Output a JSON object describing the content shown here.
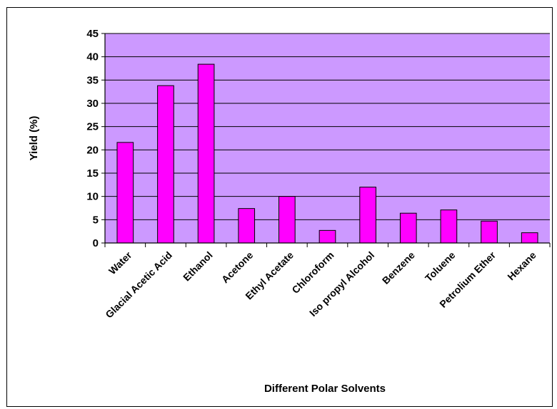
{
  "chart_data": {
    "type": "bar",
    "title": "",
    "xlabel": "Different Polar Solvents",
    "ylabel": "Yield (%)",
    "ylim": [
      0,
      45
    ],
    "yticks": [
      0,
      5,
      10,
      15,
      20,
      25,
      30,
      35,
      40,
      45
    ],
    "grid": true,
    "legend": "none",
    "categories": [
      "Water",
      "Glacial Acetic Acid",
      "Ethanol",
      "Acetone",
      "Ethyl Acetate",
      "Chloroform",
      "Iso propyl Alcohol",
      "Benzene",
      "Toluene",
      "Petrolium Ether",
      "Hexane"
    ],
    "series": [
      {
        "values": [
          21.6,
          33.8,
          38.4,
          7.4,
          10.0,
          2.7,
          12.0,
          6.4,
          7.1,
          4.7,
          2.2
        ]
      }
    ],
    "colors": {
      "plot_background": "#cc99ff",
      "bar_fill": "#ff00ff",
      "bar_stroke": "#000000",
      "gridline": "#000000"
    }
  }
}
